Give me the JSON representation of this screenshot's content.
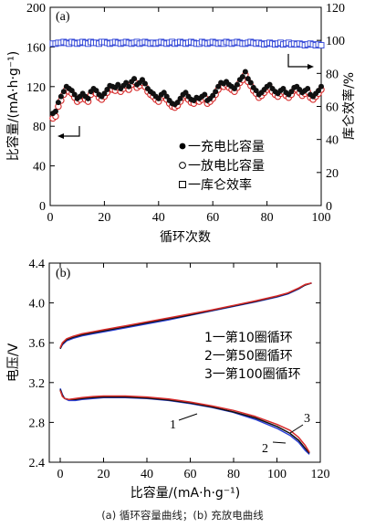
{
  "caption": "(a) 循环容量曲线；(b) 充放电曲线",
  "chart_data": [
    {
      "type": "scatter",
      "panel_label": "(a)",
      "xlabel": "循环次数",
      "ylabel": "比容量/(mA·h·g⁻¹)",
      "ylabel_right": "库仑效率/%",
      "xlim": [
        0,
        100
      ],
      "ylim": [
        0,
        200
      ],
      "ylim_right": [
        0,
        120
      ],
      "x_ticks": [
        0,
        20,
        40,
        60,
        80,
        100
      ],
      "y_ticks": [
        0,
        40,
        80,
        120,
        160,
        200
      ],
      "y_ticks_right": [
        0,
        20,
        40,
        60,
        80,
        100,
        120
      ],
      "legend_position": "center-right",
      "series": [
        {
          "name": "充电比容量",
          "marker": "filled-circle",
          "axis": "left",
          "x": [
            1,
            2,
            3,
            4,
            5,
            6,
            7,
            8,
            9,
            10,
            11,
            12,
            13,
            14,
            15,
            16,
            17,
            18,
            19,
            20,
            21,
            22,
            23,
            24,
            25,
            26,
            27,
            28,
            29,
            30,
            31,
            32,
            33,
            34,
            35,
            36,
            37,
            38,
            39,
            40,
            41,
            42,
            43,
            44,
            45,
            46,
            47,
            48,
            49,
            50,
            51,
            52,
            53,
            54,
            55,
            56,
            57,
            58,
            59,
            60,
            61,
            62,
            63,
            64,
            65,
            66,
            67,
            68,
            69,
            70,
            71,
            72,
            73,
            74,
            75,
            76,
            77,
            78,
            79,
            80,
            81,
            82,
            83,
            84,
            85,
            86,
            87,
            88,
            89,
            90,
            91,
            92,
            93,
            94,
            95,
            96,
            97,
            98,
            99,
            100
          ],
          "values": [
            93,
            95,
            104,
            110,
            115,
            120,
            118,
            116,
            112,
            108,
            110,
            113,
            110,
            108,
            115,
            118,
            116,
            112,
            110,
            113,
            117,
            121,
            120,
            119,
            122,
            118,
            121,
            124,
            120,
            125,
            128,
            122,
            124,
            127,
            123,
            118,
            115,
            113,
            110,
            108,
            112,
            114,
            110,
            106,
            103,
            102,
            104,
            108,
            112,
            114,
            110,
            107,
            106,
            109,
            108,
            110,
            112,
            106,
            108,
            111,
            115,
            120,
            124,
            123,
            125,
            122,
            120,
            118,
            122,
            127,
            130,
            135,
            128,
            124,
            119,
            116,
            112,
            114,
            117,
            120,
            122,
            118,
            115,
            113,
            116,
            118,
            114,
            112,
            115,
            119,
            120,
            117,
            114,
            116,
            118,
            112,
            110,
            113,
            116,
            120
          ]
        },
        {
          "name": "放电比容量",
          "marker": "open-circle",
          "axis": "left",
          "x": [
            1,
            2,
            3,
            4,
            5,
            6,
            7,
            8,
            9,
            10,
            11,
            12,
            13,
            14,
            15,
            16,
            17,
            18,
            19,
            20,
            21,
            22,
            23,
            24,
            25,
            26,
            27,
            28,
            29,
            30,
            31,
            32,
            33,
            34,
            35,
            36,
            37,
            38,
            39,
            40,
            41,
            42,
            43,
            44,
            45,
            46,
            47,
            48,
            49,
            50,
            51,
            52,
            53,
            54,
            55,
            56,
            57,
            58,
            59,
            60,
            61,
            62,
            63,
            64,
            65,
            66,
            67,
            68,
            69,
            70,
            71,
            72,
            73,
            74,
            75,
            76,
            77,
            78,
            79,
            80,
            81,
            82,
            83,
            84,
            85,
            86,
            87,
            88,
            89,
            90,
            91,
            92,
            93,
            94,
            95,
            96,
            97,
            98,
            99,
            100
          ],
          "values": [
            88,
            90,
            100,
            106,
            112,
            117,
            115,
            113,
            109,
            105,
            107,
            110,
            107,
            105,
            112,
            115,
            113,
            109,
            107,
            110,
            114,
            118,
            117,
            116,
            119,
            115,
            118,
            121,
            117,
            122,
            125,
            119,
            121,
            124,
            120,
            115,
            112,
            110,
            107,
            105,
            109,
            111,
            107,
            103,
            100,
            99,
            101,
            105,
            109,
            111,
            107,
            104,
            103,
            106,
            105,
            107,
            109,
            103,
            105,
            108,
            112,
            117,
            121,
            120,
            122,
            119,
            117,
            115,
            119,
            124,
            127,
            132,
            125,
            121,
            116,
            113,
            109,
            111,
            114,
            117,
            119,
            115,
            112,
            110,
            113,
            115,
            111,
            109,
            112,
            116,
            117,
            114,
            111,
            113,
            115,
            109,
            107,
            110,
            113,
            117
          ]
        },
        {
          "name": "库仑效率",
          "marker": "open-square",
          "axis": "right",
          "x": [
            1,
            2,
            3,
            4,
            5,
            6,
            7,
            8,
            9,
            10,
            11,
            12,
            13,
            14,
            15,
            16,
            17,
            18,
            19,
            20,
            21,
            22,
            23,
            24,
            25,
            26,
            27,
            28,
            29,
            30,
            31,
            32,
            33,
            34,
            35,
            36,
            37,
            38,
            39,
            40,
            41,
            42,
            43,
            44,
            45,
            46,
            47,
            48,
            49,
            50,
            51,
            52,
            53,
            54,
            55,
            56,
            57,
            58,
            59,
            60,
            61,
            62,
            63,
            64,
            65,
            66,
            67,
            68,
            69,
            70,
            71,
            72,
            73,
            74,
            75,
            76,
            77,
            78,
            79,
            80,
            81,
            82,
            83,
            84,
            85,
            86,
            87,
            88,
            89,
            90,
            91,
            92,
            93,
            94,
            95,
            96,
            97,
            98,
            99,
            100
          ],
          "values": [
            98,
            98,
            98.5,
            98.5,
            99,
            98.5,
            98,
            99,
            98.5,
            98,
            98.5,
            99,
            98.5,
            98,
            99,
            98.5,
            98.5,
            98,
            99,
            99,
            98.5,
            98,
            98.5,
            99,
            98.5,
            98,
            98.5,
            99,
            98.5,
            98,
            98.5,
            99,
            98,
            98.5,
            99,
            98.5,
            98,
            98.5,
            98,
            98.5,
            99,
            98.5,
            98,
            98.5,
            99,
            98,
            98.5,
            99,
            98.5,
            98,
            98.5,
            99,
            98.5,
            98,
            98,
            99,
            98.5,
            98,
            98.5,
            99,
            98.5,
            98,
            98.5,
            98,
            99,
            98.5,
            98,
            98.5,
            99,
            98.5,
            98,
            98,
            98.5,
            99,
            98.5,
            98,
            98.5,
            98,
            97.5,
            98,
            98.5,
            98,
            97.5,
            98,
            98.5,
            97.5,
            98,
            98.5,
            97.5,
            98,
            97.5,
            98,
            97.5,
            97,
            97.5,
            98,
            97.5,
            97,
            97.5,
            97
          ]
        }
      ],
      "annotations": [
        "一充电比容量",
        "一放电比容量",
        "一库仑效率"
      ]
    },
    {
      "type": "line",
      "panel_label": "(b)",
      "xlabel": "比容量/(mA·h·g⁻¹)",
      "ylabel": "电压/V",
      "xlim": [
        0,
        120
      ],
      "ylim": [
        2.4,
        4.4
      ],
      "x_ticks": [
        0,
        20,
        40,
        60,
        80,
        100,
        120
      ],
      "y_ticks": [
        2.4,
        2.8,
        3.2,
        3.6,
        4.0,
        4.4
      ],
      "legend_position": "right",
      "series": [
        {
          "name": "第10圈循环",
          "color": "#2a3fd6",
          "charge": {
            "x": [
              0,
              1,
              3,
              6,
              10,
              15,
              20,
              30,
              40,
              50,
              60,
              70,
              80,
              90,
              100,
              105,
              110,
              113,
              116
            ],
            "y": [
              3.54,
              3.58,
              3.62,
              3.645,
              3.67,
              3.69,
              3.71,
              3.75,
              3.79,
              3.83,
              3.875,
              3.92,
              3.965,
              4.01,
              4.06,
              4.09,
              4.14,
              4.18,
              4.2
            ]
          },
          "discharge": {
            "x": [
              0,
              1,
              2,
              4,
              7,
              10,
              15,
              20,
              30,
              40,
              50,
              60,
              70,
              80,
              90,
              100,
              106,
              110,
              113,
              115
            ],
            "y": [
              3.14,
              3.08,
              3.04,
              3.02,
              3.02,
              3.03,
              3.04,
              3.05,
              3.05,
              3.04,
              3.02,
              2.99,
              2.95,
              2.9,
              2.83,
              2.74,
              2.67,
              2.6,
              2.52,
              2.48
            ]
          }
        },
        {
          "name": "第50圈循环",
          "color": "#111111",
          "charge": {
            "x": [
              0,
              1,
              3,
              6,
              10,
              15,
              20,
              30,
              40,
              50,
              60,
              70,
              80,
              90,
              100,
              105,
              110,
              113,
              116
            ],
            "y": [
              3.54,
              3.59,
              3.63,
              3.655,
              3.68,
              3.7,
              3.72,
              3.76,
              3.8,
              3.84,
              3.88,
              3.925,
              3.97,
              4.015,
              4.065,
              4.095,
              4.145,
              4.18,
              4.2
            ]
          },
          "discharge": {
            "x": [
              0,
              1,
              2,
              4,
              7,
              10,
              15,
              20,
              30,
              40,
              50,
              60,
              70,
              80,
              90,
              100,
              106,
              110,
              113,
              115
            ],
            "y": [
              3.13,
              3.07,
              3.04,
              3.03,
              3.03,
              3.04,
              3.05,
              3.055,
              3.055,
              3.045,
              3.025,
              2.995,
              2.955,
              2.905,
              2.845,
              2.76,
              2.69,
              2.62,
              2.54,
              2.49
            ]
          }
        },
        {
          "name": "第100圈循环",
          "color": "#d62a2a",
          "charge": {
            "x": [
              0,
              1,
              3,
              6,
              10,
              15,
              20,
              30,
              40,
              50,
              60,
              70,
              80,
              90,
              100,
              105,
              110,
              113,
              116
            ],
            "y": [
              3.55,
              3.6,
              3.64,
              3.665,
              3.69,
              3.71,
              3.73,
              3.77,
              3.81,
              3.85,
              3.89,
              3.93,
              3.975,
              4.02,
              4.07,
              4.1,
              4.15,
              4.185,
              4.2
            ]
          },
          "discharge": {
            "x": [
              0,
              1,
              2,
              4,
              7,
              10,
              15,
              20,
              30,
              40,
              50,
              60,
              70,
              80,
              90,
              100,
              106,
              110,
              113,
              115
            ],
            "y": [
              3.12,
              3.06,
              3.04,
              3.03,
              3.04,
              3.05,
              3.06,
              3.065,
              3.065,
              3.055,
              3.035,
              3.005,
              2.965,
              2.92,
              2.86,
              2.78,
              2.72,
              2.65,
              2.57,
              2.5
            ]
          }
        }
      ],
      "legend_labels": [
        "1一第10圈循环",
        "2一第50圈循环",
        "3一第100圈循环"
      ],
      "annotations": [
        "1",
        "2",
        "3"
      ]
    }
  ]
}
